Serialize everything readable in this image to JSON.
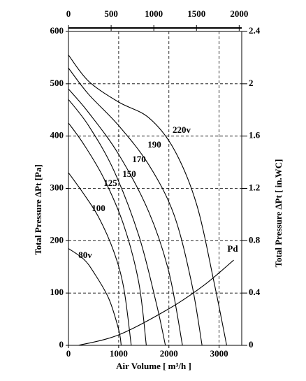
{
  "chart_data": {
    "type": "line",
    "xlabel": "Air Volume  [ m³/h ]",
    "ylabel": "Total Pressure ΔPt  [Pa]",
    "y2label": "Total Pressure ΔPt  [ in.WC]",
    "xlim": [
      0,
      3450
    ],
    "xticks": [
      0,
      1000,
      2000,
      3000
    ],
    "x2lim": [
      0,
      2030
    ],
    "x2ticks": [
      0,
      500,
      1000,
      1500,
      2000
    ],
    "ylim": [
      0,
      600
    ],
    "yticks": [
      0,
      100,
      200,
      300,
      400,
      500,
      600
    ],
    "y2lim": [
      0,
      2.4
    ],
    "y2ticks": [
      0,
      0.4,
      0.8,
      1.2,
      1.6,
      2.0,
      2.4
    ],
    "grid": true,
    "series": [
      {
        "name": "80v",
        "color": "#000000",
        "x": [
          0,
          300,
          500,
          800,
          1000,
          1050
        ],
        "values": [
          185,
          165,
          140,
          90,
          30,
          0
        ]
      },
      {
        "name": "100",
        "color": "#000000",
        "x": [
          0,
          300,
          600,
          900,
          1100,
          1250
        ],
        "values": [
          330,
          290,
          245,
          180,
          110,
          0
        ]
      },
      {
        "name": "125",
        "color": "#000000",
        "x": [
          0,
          300,
          700,
          1100,
          1400,
          1550
        ],
        "values": [
          425,
          385,
          320,
          230,
          120,
          0
        ]
      },
      {
        "name": "150",
        "color": "#000000",
        "x": [
          0,
          400,
          900,
          1400,
          1750,
          1930
        ],
        "values": [
          470,
          420,
          335,
          210,
          80,
          0
        ]
      },
      {
        "name": "170",
        "color": "#000000",
        "x": [
          0,
          400,
          1000,
          1600,
          2000,
          2270
        ],
        "values": [
          490,
          445,
          365,
          255,
          140,
          0
        ]
      },
      {
        "name": "190",
        "color": "#000000",
        "x": [
          0,
          400,
          1000,
          1600,
          2100,
          2450,
          2660
        ],
        "values": [
          530,
          480,
          420,
          345,
          250,
          120,
          0
        ]
      },
      {
        "name": "220v",
        "color": "#000000",
        "x": [
          0,
          400,
          1000,
          1600,
          2100,
          2550,
          2900,
          3150
        ],
        "values": [
          555,
          505,
          465,
          435,
          375,
          270,
          120,
          0
        ]
      },
      {
        "name": "Pd",
        "color": "#000000",
        "x": [
          200,
          1000,
          2000,
          2700,
          3290
        ],
        "values": [
          0,
          20,
          70,
          115,
          163
        ]
      }
    ]
  }
}
